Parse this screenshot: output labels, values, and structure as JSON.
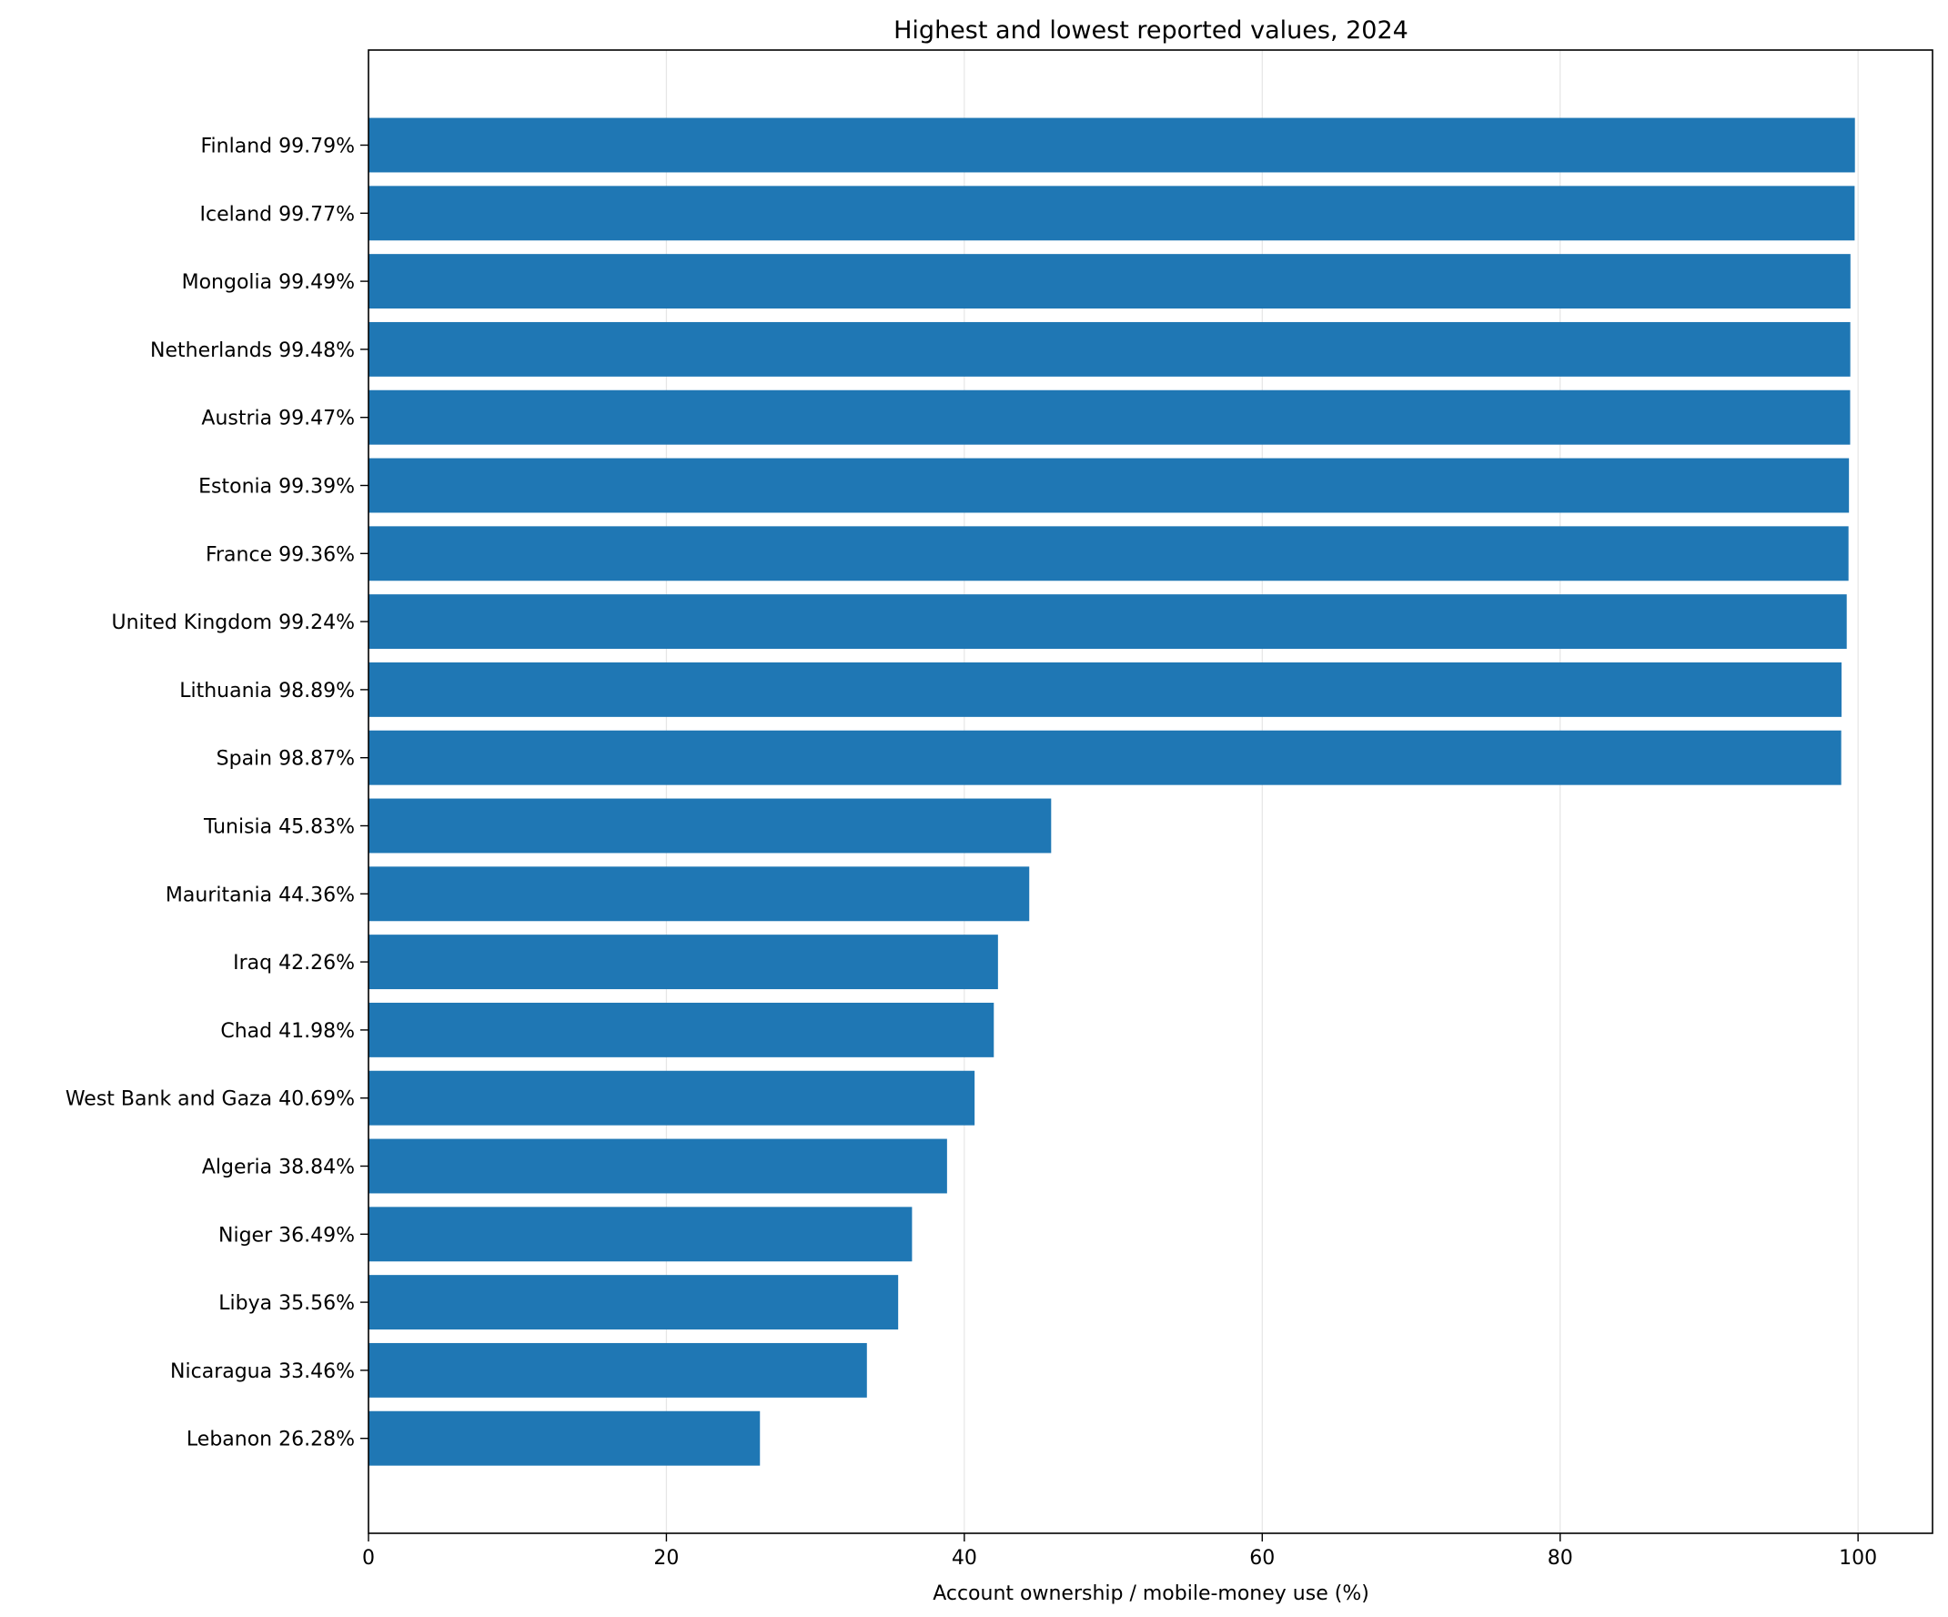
{
  "chart_data": {
    "type": "bar",
    "orientation": "horizontal",
    "title": "Highest and lowest reported values, 2024",
    "xlabel": "Account ownership / mobile-money use (%)",
    "ylabel": "",
    "xlim": [
      0,
      105
    ],
    "xticks": [
      0,
      20,
      40,
      60,
      80,
      100
    ],
    "grid": "x",
    "bar_color": "#1f77b4",
    "categories": [
      "Finland  99.79%",
      "Iceland  99.77%",
      "Mongolia  99.49%",
      "Netherlands  99.48%",
      "Austria  99.47%",
      "Estonia  99.39%",
      "France  99.36%",
      "United Kingdom  99.24%",
      "Lithuania  98.89%",
      "Spain  98.87%",
      "Tunisia  45.83%",
      "Mauritania  44.36%",
      "Iraq  42.26%",
      "Chad  41.98%",
      "West Bank and Gaza  40.69%",
      "Algeria  38.84%",
      "Niger  36.49%",
      "Libya  35.56%",
      "Nicaragua  33.46%",
      "Lebanon  26.28%"
    ],
    "values": [
      99.79,
      99.77,
      99.49,
      99.48,
      99.47,
      99.39,
      99.36,
      99.24,
      98.89,
      98.87,
      45.83,
      44.36,
      42.26,
      41.98,
      40.69,
      38.84,
      36.49,
      35.56,
      33.46,
      26.28
    ]
  }
}
